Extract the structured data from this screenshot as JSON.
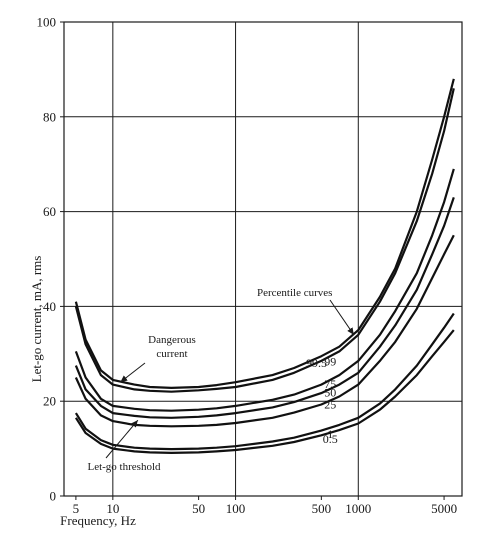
{
  "chart_data": {
    "type": "line",
    "xscale": "log",
    "xlabel": "Frequency, Hz",
    "ylabel": "Let-go current, mA, rms",
    "xlim": [
      4,
      7000
    ],
    "ylim": [
      0,
      100
    ],
    "grid": true,
    "x_ticks": [
      5,
      10,
      50,
      100,
      500,
      1000,
      5000
    ],
    "x_tick_labels": [
      "5",
      "10",
      "50",
      "100",
      "500",
      "1000",
      "5000"
    ],
    "x_gridlines": [
      10,
      100,
      1000
    ],
    "y_ticks": [
      0,
      20,
      40,
      60,
      80,
      100
    ],
    "y_tick_labels": [
      "0",
      "20",
      "40",
      "60",
      "80",
      "100"
    ],
    "series": [
      {
        "name": "99.5",
        "x": [
          5,
          6,
          8,
          10,
          15,
          20,
          30,
          50,
          70,
          100,
          200,
          300,
          500,
          700,
          1000,
          1500,
          2000,
          3000,
          4000,
          5000,
          6000
        ],
        "y": [
          41,
          33,
          26.5,
          24.5,
          23.5,
          23,
          22.8,
          23,
          23.4,
          24,
          25.5,
          27,
          29.5,
          31.5,
          35,
          42,
          48,
          60,
          71,
          80,
          88
        ]
      },
      {
        "name": "99",
        "x": [
          5,
          6,
          8,
          10,
          15,
          20,
          30,
          50,
          70,
          100,
          200,
          300,
          500,
          700,
          1000,
          1500,
          2000,
          3000,
          4000,
          5000,
          6000
        ],
        "y": [
          40,
          32,
          25.5,
          23.5,
          22.5,
          22.2,
          22,
          22.3,
          22.6,
          23,
          24.5,
          26,
          28.5,
          30.5,
          34,
          41,
          47,
          58,
          68,
          77,
          86
        ]
      },
      {
        "name": "75",
        "x": [
          5,
          6,
          8,
          10,
          15,
          20,
          30,
          50,
          70,
          100,
          200,
          300,
          500,
          700,
          1000,
          1500,
          2000,
          3000,
          4000,
          5000,
          6000
        ],
        "y": [
          30.5,
          25,
          20.5,
          19,
          18.4,
          18.1,
          18,
          18.2,
          18.5,
          19,
          20.3,
          21.4,
          23.5,
          25.5,
          28.5,
          34,
          39,
          47,
          55,
          62,
          69
        ]
      },
      {
        "name": "50",
        "x": [
          5,
          6,
          8,
          10,
          15,
          20,
          30,
          50,
          70,
          100,
          200,
          300,
          500,
          700,
          1000,
          1500,
          2000,
          3000,
          4000,
          5000,
          6000
        ],
        "y": [
          27.5,
          22.5,
          19,
          17.5,
          16.9,
          16.6,
          16.5,
          16.7,
          17,
          17.5,
          18.7,
          19.8,
          21.7,
          23.5,
          26,
          31.5,
          36,
          43.5,
          51,
          57,
          63
        ]
      },
      {
        "name": "25",
        "x": [
          5,
          6,
          8,
          10,
          15,
          20,
          30,
          50,
          70,
          100,
          200,
          300,
          500,
          700,
          1000,
          1500,
          2000,
          3000,
          4000,
          5000,
          6000
        ],
        "y": [
          25,
          20.5,
          17,
          15.8,
          15,
          14.8,
          14.7,
          14.8,
          15,
          15.4,
          16.5,
          17.6,
          19.3,
          21,
          23.5,
          28.5,
          32.5,
          39.5,
          46,
          51,
          55
        ]
      },
      {
        "name": "1",
        "x": [
          5,
          6,
          8,
          10,
          15,
          20,
          30,
          50,
          70,
          100,
          200,
          300,
          500,
          700,
          1000,
          1500,
          2000,
          3000,
          4000,
          5000,
          6000
        ],
        "y": [
          17.5,
          14.2,
          11.8,
          10.8,
          10.2,
          10,
          9.9,
          10,
          10.2,
          10.5,
          11.5,
          12.3,
          13.8,
          15,
          16.5,
          19.5,
          22.5,
          27.5,
          32,
          35.5,
          38.5
        ]
      },
      {
        "name": "0.5",
        "x": [
          5,
          6,
          8,
          10,
          15,
          20,
          30,
          50,
          70,
          100,
          200,
          300,
          500,
          700,
          1000,
          1500,
          2000,
          3000,
          4000,
          5000,
          6000
        ],
        "y": [
          16.5,
          13.3,
          11,
          10,
          9.4,
          9.2,
          9.1,
          9.2,
          9.4,
          9.7,
          10.6,
          11.4,
          12.8,
          13.9,
          15.3,
          18.2,
          21,
          25.5,
          29.5,
          32.5,
          35
        ]
      }
    ],
    "annotations": [
      {
        "id": "percentile-curves",
        "text": "Percentile curves",
        "points_to": {
          "x": 920,
          "y": 34
        }
      },
      {
        "id": "dangerous-current",
        "text": "Dangerous\ncurrent",
        "points_to": {
          "x": 11.5,
          "y": 24
        }
      },
      {
        "id": "let-go-threshold",
        "text": "Let-go threshold",
        "points_to": {
          "x": 16,
          "y": 16
        }
      }
    ]
  }
}
